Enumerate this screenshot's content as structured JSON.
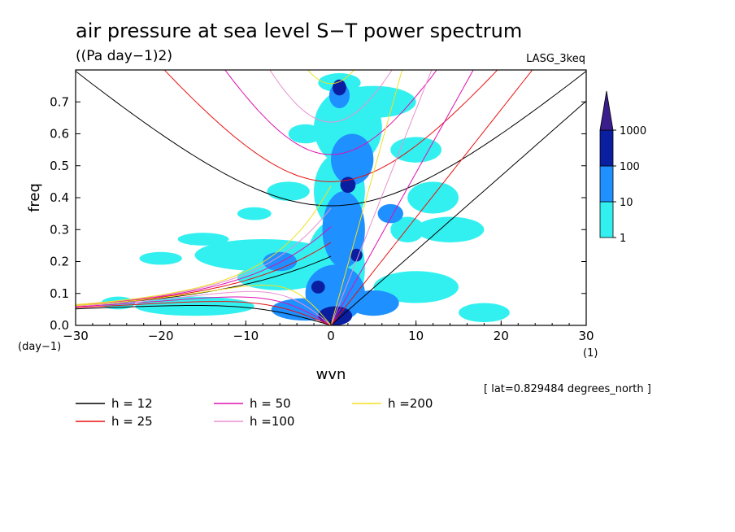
{
  "chart_data": {
    "type": "heatmap",
    "title": "air pressure at sea level S−T power spectrum",
    "subtitle": "((Pa day−1)2)",
    "model": "LASG_3keq",
    "xlabel": "wvn",
    "ylabel": "freq",
    "x_unit": "(1)",
    "y_unit": "(day−1)",
    "xlim": [
      -30,
      30
    ],
    "ylim": [
      0,
      0.8
    ],
    "x_ticks": [
      "−30",
      "−20",
      "−10",
      "0",
      "10",
      "20",
      "30"
    ],
    "x_tick_values": [
      -30,
      -20,
      -10,
      0,
      10,
      20,
      30
    ],
    "y_ticks": [
      "0.0",
      "0.1",
      "0.2",
      "0.3",
      "0.4",
      "0.5",
      "0.6",
      "0.7"
    ],
    "y_tick_values": [
      0,
      0.1,
      0.2,
      0.3,
      0.4,
      0.5,
      0.6,
      0.7
    ],
    "annotation": "[ lat=0.829484 degrees_north ]",
    "colorbar": {
      "labels": [
        "1",
        "10",
        "100",
        "1000"
      ],
      "levels": [
        1,
        10,
        100,
        1000
      ],
      "colors": [
        "#33f0f0",
        "#1e90ff",
        "#0a1ea0",
        "#3a1e8c"
      ]
    },
    "contour_bands": [
      {
        "level": 1,
        "color": "#33f0f0",
        "blobs": [
          [
            0.5,
            0.18,
            3.5,
            0.15
          ],
          [
            1,
            0.42,
            3,
            0.12
          ],
          [
            2,
            0.62,
            4,
            0.12
          ],
          [
            -8,
            0.22,
            8,
            0.05
          ],
          [
            -16,
            0.06,
            7,
            0.03
          ],
          [
            -6,
            0.15,
            5,
            0.04
          ],
          [
            10,
            0.12,
            5,
            0.05
          ],
          [
            12,
            0.4,
            3,
            0.05
          ],
          [
            -15,
            0.27,
            3,
            0.02
          ],
          [
            -20,
            0.21,
            2.5,
            0.02
          ],
          [
            14,
            0.3,
            4,
            0.04
          ],
          [
            10,
            0.55,
            3,
            0.04
          ],
          [
            5,
            0.7,
            5,
            0.05
          ],
          [
            -5,
            0.42,
            2.5,
            0.03
          ],
          [
            -9,
            0.35,
            2,
            0.02
          ],
          [
            18,
            0.04,
            3,
            0.03
          ],
          [
            -25,
            0.07,
            2,
            0.02
          ],
          [
            9,
            0.3,
            2,
            0.04
          ],
          [
            1,
            0.76,
            2.5,
            0.03
          ],
          [
            -3,
            0.6,
            2,
            0.03
          ]
        ]
      },
      {
        "level": 10,
        "color": "#1e90ff",
        "blobs": [
          [
            0.5,
            0.1,
            3.5,
            0.09
          ],
          [
            1.5,
            0.3,
            2.5,
            0.12
          ],
          [
            2.5,
            0.52,
            2.5,
            0.08
          ],
          [
            1,
            0.72,
            1.2,
            0.04
          ],
          [
            -3,
            0.05,
            4,
            0.035
          ],
          [
            5,
            0.07,
            3,
            0.04
          ],
          [
            -6,
            0.2,
            2,
            0.03
          ],
          [
            7,
            0.35,
            1.5,
            0.03
          ]
        ]
      },
      {
        "level": 100,
        "color": "#0a1ea0",
        "blobs": [
          [
            0.5,
            0.03,
            2,
            0.03
          ],
          [
            1,
            0.745,
            0.8,
            0.025
          ],
          [
            2,
            0.44,
            0.9,
            0.025
          ],
          [
            -1.5,
            0.12,
            0.8,
            0.02
          ],
          [
            3,
            0.22,
            0.7,
            0.02
          ]
        ]
      }
    ],
    "dispersion_curves": [
      {
        "name": "h = 12",
        "color": "#000000",
        "h": 12
      },
      {
        "name": "h = 25",
        "color": "#e81010",
        "h": 25
      },
      {
        "name": "h = 50",
        "color": "#e010b0",
        "h": 50
      },
      {
        "name": "h =100",
        "color": "#e890d0",
        "h": 100
      },
      {
        "name": "h =200",
        "color": "#f0e020",
        "h": 200
      }
    ]
  }
}
